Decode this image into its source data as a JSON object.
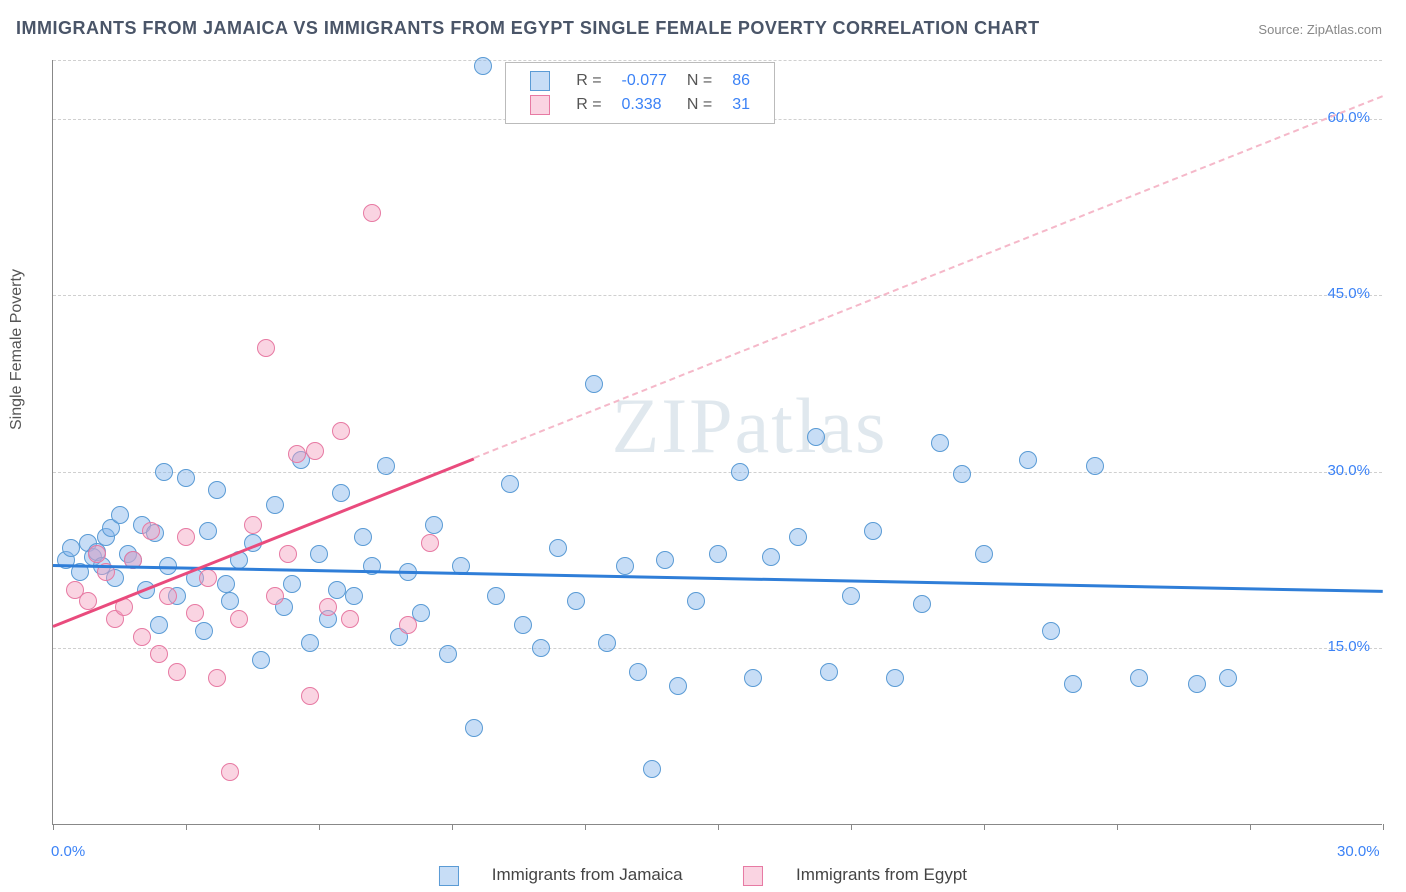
{
  "title": "IMMIGRANTS FROM JAMAICA VS IMMIGRANTS FROM EGYPT SINGLE FEMALE POVERTY CORRELATION CHART",
  "source_label": "Source:",
  "source_name": "ZipAtlas.com",
  "ylabel": "Single Female Poverty",
  "watermark": "ZIPatlas",
  "chart": {
    "type": "scatter",
    "xlim": [
      0,
      30
    ],
    "ylim": [
      0,
      65
    ],
    "x_tick_labels": {
      "0": "0.0%",
      "30": "30.0%"
    },
    "x_tick_positions": [
      0,
      3,
      6,
      9,
      12,
      15,
      18,
      21,
      24,
      27,
      30
    ],
    "y_gridlines": [
      15,
      30,
      45,
      60,
      65
    ],
    "y_tick_labels": {
      "15": "15.0%",
      "30": "30.0%",
      "45": "45.0%",
      "60": "60.0%"
    },
    "background_color": "#ffffff",
    "grid_color": "#d0d0d0",
    "axis_color": "#888888",
    "label_color": "#3b82f6",
    "marker_radius": 9,
    "series": [
      {
        "name": "Immigrants from Jamaica",
        "fill": "rgba(130,180,235,0.45)",
        "stroke": "#5a9bd5",
        "trend_color": "#2f7ed8",
        "trend_dash_color": "#9fc5f0",
        "R": "-0.077",
        "N": "86",
        "trend": {
          "x1": 0,
          "y1": 22.2,
          "x2": 30,
          "y2": 20.0,
          "solid_until_x": 30
        },
        "points": [
          [
            0.3,
            22.5
          ],
          [
            0.4,
            23.5
          ],
          [
            0.6,
            21.5
          ],
          [
            0.8,
            24.0
          ],
          [
            0.9,
            22.8
          ],
          [
            1.0,
            23.2
          ],
          [
            1.1,
            22.0
          ],
          [
            1.2,
            24.5
          ],
          [
            1.3,
            25.2
          ],
          [
            1.4,
            21.0
          ],
          [
            1.5,
            26.3
          ],
          [
            1.7,
            23.0
          ],
          [
            1.8,
            22.5
          ],
          [
            2.0,
            25.5
          ],
          [
            2.1,
            20.0
          ],
          [
            2.3,
            24.8
          ],
          [
            2.5,
            30.0
          ],
          [
            2.6,
            22.0
          ],
          [
            2.8,
            19.5
          ],
          [
            3.0,
            29.5
          ],
          [
            3.2,
            21.0
          ],
          [
            3.4,
            16.5
          ],
          [
            3.5,
            25.0
          ],
          [
            3.7,
            28.5
          ],
          [
            4.0,
            19.0
          ],
          [
            4.2,
            22.5
          ],
          [
            4.5,
            24.0
          ],
          [
            4.7,
            14.0
          ],
          [
            5.0,
            27.2
          ],
          [
            5.2,
            18.5
          ],
          [
            5.4,
            20.5
          ],
          [
            5.6,
            31.0
          ],
          [
            5.8,
            15.5
          ],
          [
            6.0,
            23.0
          ],
          [
            6.2,
            17.5
          ],
          [
            6.5,
            28.2
          ],
          [
            6.8,
            19.5
          ],
          [
            7.0,
            24.5
          ],
          [
            7.2,
            22.0
          ],
          [
            7.5,
            30.5
          ],
          [
            7.8,
            16.0
          ],
          [
            8.0,
            21.5
          ],
          [
            8.3,
            18.0
          ],
          [
            8.6,
            25.5
          ],
          [
            8.9,
            14.5
          ],
          [
            9.2,
            22.0
          ],
          [
            9.5,
            8.2
          ],
          [
            9.7,
            64.5
          ],
          [
            10.0,
            19.5
          ],
          [
            10.3,
            29.0
          ],
          [
            10.6,
            17.0
          ],
          [
            11.0,
            15.0
          ],
          [
            11.4,
            23.5
          ],
          [
            11.8,
            19.0
          ],
          [
            12.2,
            37.5
          ],
          [
            12.5,
            15.5
          ],
          [
            12.9,
            22.0
          ],
          [
            13.2,
            13.0
          ],
          [
            13.5,
            4.8
          ],
          [
            13.8,
            22.5
          ],
          [
            14.1,
            11.8
          ],
          [
            14.5,
            19.0
          ],
          [
            15.0,
            23.0
          ],
          [
            15.5,
            30.0
          ],
          [
            15.8,
            12.5
          ],
          [
            16.2,
            22.8
          ],
          [
            16.8,
            24.5
          ],
          [
            17.2,
            33.0
          ],
          [
            17.5,
            13.0
          ],
          [
            18.0,
            19.5
          ],
          [
            18.5,
            25.0
          ],
          [
            19.0,
            12.5
          ],
          [
            19.6,
            18.8
          ],
          [
            20.0,
            32.5
          ],
          [
            20.5,
            29.8
          ],
          [
            21.0,
            23.0
          ],
          [
            22.0,
            31.0
          ],
          [
            22.5,
            16.5
          ],
          [
            23.0,
            12.0
          ],
          [
            23.5,
            30.5
          ],
          [
            24.5,
            12.5
          ],
          [
            25.8,
            12.0
          ],
          [
            26.5,
            12.5
          ],
          [
            2.4,
            17.0
          ],
          [
            3.9,
            20.5
          ],
          [
            6.4,
            20.0
          ]
        ]
      },
      {
        "name": "Immigrants from Egypt",
        "fill": "rgba(245,160,190,0.45)",
        "stroke": "#e77aa3",
        "trend_color": "#e94b7d",
        "trend_dash_color": "#f5b8c9",
        "R": "0.338",
        "N": "31",
        "trend": {
          "x1": 0,
          "y1": 17.0,
          "x2": 30,
          "y2": 62.0,
          "solid_until_x": 9.5
        },
        "points": [
          [
            0.5,
            20.0
          ],
          [
            0.8,
            19.0
          ],
          [
            1.0,
            23.0
          ],
          [
            1.2,
            21.5
          ],
          [
            1.4,
            17.5
          ],
          [
            1.6,
            18.5
          ],
          [
            1.8,
            22.5
          ],
          [
            2.0,
            16.0
          ],
          [
            2.2,
            25.0
          ],
          [
            2.4,
            14.5
          ],
          [
            2.6,
            19.5
          ],
          [
            2.8,
            13.0
          ],
          [
            3.0,
            24.5
          ],
          [
            3.2,
            18.0
          ],
          [
            3.5,
            21.0
          ],
          [
            3.7,
            12.5
          ],
          [
            4.0,
            4.5
          ],
          [
            4.2,
            17.5
          ],
          [
            4.5,
            25.5
          ],
          [
            4.8,
            40.5
          ],
          [
            5.0,
            19.5
          ],
          [
            5.3,
            23.0
          ],
          [
            5.5,
            31.5
          ],
          [
            5.8,
            11.0
          ],
          [
            5.9,
            31.8
          ],
          [
            6.2,
            18.5
          ],
          [
            6.5,
            33.5
          ],
          [
            6.7,
            17.5
          ],
          [
            7.2,
            52.0
          ],
          [
            8.0,
            17.0
          ],
          [
            8.5,
            24.0
          ]
        ]
      }
    ]
  },
  "legend_top": {
    "cols": [
      "R =",
      "N ="
    ]
  }
}
